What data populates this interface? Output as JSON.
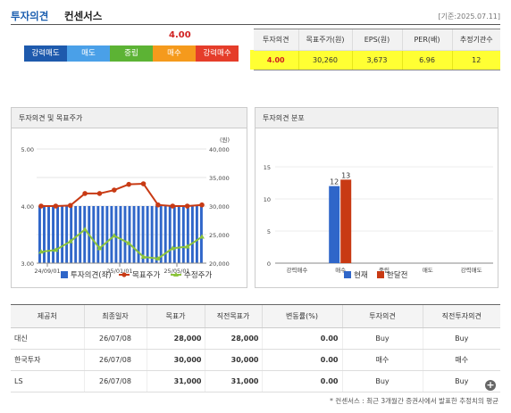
{
  "header": {
    "title_1": "투자의견",
    "title_2": "컨센서스",
    "date": "[기준:2025.07.11]"
  },
  "scale": {
    "value": "4.00",
    "level": 4.0,
    "items": [
      {
        "label": "강력매도",
        "color": "#1e5aad"
      },
      {
        "label": "매도",
        "color": "#4aa0e8"
      },
      {
        "label": "중립",
        "color": "#5cb334"
      },
      {
        "label": "매수",
        "color": "#f59a1c"
      },
      {
        "label": "강력매수",
        "color": "#e53d2a"
      }
    ]
  },
  "consensus": {
    "headers": [
      "투자의견",
      "목표주가(원)",
      "EPS(원)",
      "PER(배)",
      "추정기관수"
    ],
    "values": [
      "4.00",
      "30,260",
      "3,673",
      "6.96",
      "12"
    ]
  },
  "panel_left": {
    "title": "투자의견 및 목표주가"
  },
  "panel_right": {
    "title": "투자의견 분포"
  },
  "chart_data": [
    {
      "type": "bar+line",
      "x_ticks": [
        "24/09/01",
        "25/01/01",
        "25/05/01"
      ],
      "y_left": {
        "ticks": [
          "5.00",
          "4.00",
          "3.00"
        ],
        "ylim": [
          3.0,
          5.0
        ]
      },
      "y_right": {
        "unit": "(원)",
        "ticks": [
          "40,000",
          "35,000",
          "30,000",
          "25,000",
          "20,000"
        ],
        "ylim": [
          20000,
          40000
        ]
      },
      "bars": {
        "name": "투자의견(좌)",
        "color": "#2f66c9",
        "count": 37,
        "value": 4.0
      },
      "series": [
        {
          "name": "목표주가",
          "color": "#c83a14",
          "values": [
            30000,
            30000,
            30100,
            32200,
            32200,
            32800,
            33800,
            33900,
            30200,
            30000,
            30000,
            30200
          ]
        },
        {
          "name": "수정주가",
          "color": "#8cc43c",
          "values": [
            22000,
            22300,
            23800,
            25900,
            22600,
            24800,
            23500,
            21100,
            20800,
            22600,
            22900,
            24600
          ]
        }
      ],
      "legend": [
        "투자의견(좌)",
        "목표주가",
        "수정주가"
      ],
      "legend_position": "bottom"
    },
    {
      "type": "bar",
      "categories": [
        "강력매수",
        "매수",
        "중립",
        "매도",
        "강력매도"
      ],
      "y_ticks": [
        "15",
        "10",
        "5",
        "0"
      ],
      "ylim": [
        0,
        15
      ],
      "series": [
        {
          "name": "현재",
          "color": "#2f66c9",
          "values": [
            0,
            12,
            0,
            0,
            0
          ]
        },
        {
          "name": "한달전",
          "color": "#c83a14",
          "values": [
            0,
            13,
            0,
            0,
            0
          ]
        }
      ],
      "data_labels": [
        "12",
        "13"
      ],
      "legend_position": "bottom"
    }
  ],
  "table": {
    "headers": [
      "제공처",
      "최종일자",
      "목표가",
      "직전목표가",
      "변동률(%)",
      "투자의견",
      "직전투자의견"
    ],
    "rows": [
      [
        "대신",
        "26/07/08",
        "28,000",
        "28,000",
        "0.00",
        "Buy",
        "Buy"
      ],
      [
        "한국투자",
        "26/07/08",
        "30,000",
        "30,000",
        "0.00",
        "매수",
        "매수"
      ],
      [
        "LS",
        "26/07/08",
        "31,000",
        "31,000",
        "0.00",
        "Buy",
        "Buy"
      ]
    ]
  },
  "footnote": "* 컨센서스 : 최근 3개월간 증권사에서 발표한 추정치의 평균",
  "more_icon": "plus-circle-icon",
  "more_label": "+"
}
